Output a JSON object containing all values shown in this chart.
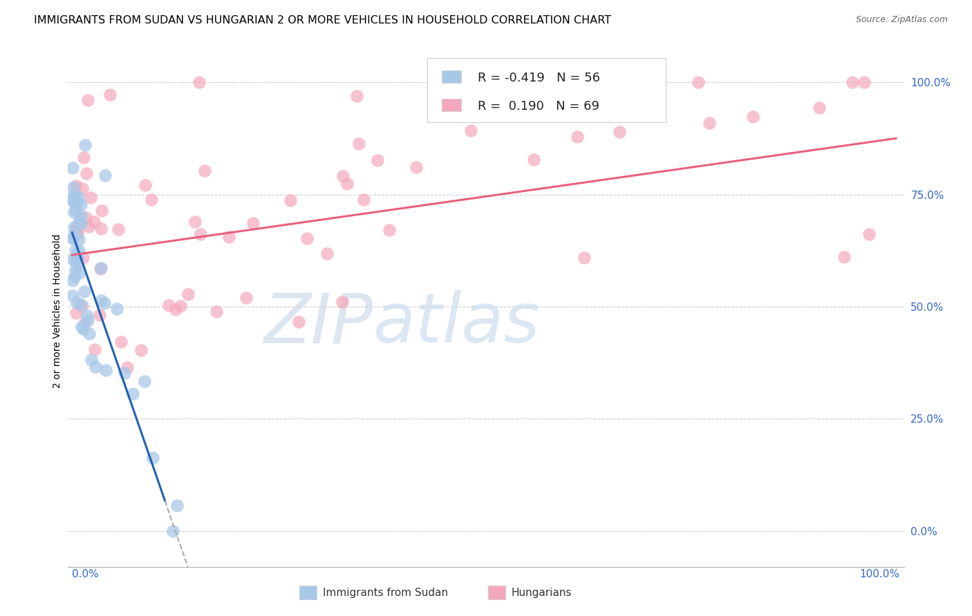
{
  "title": "IMMIGRANTS FROM SUDAN VS HUNGARIAN 2 OR MORE VEHICLES IN HOUSEHOLD CORRELATION CHART",
  "source": "Source: ZipAtlas.com",
  "ylabel": "2 or more Vehicles in Household",
  "legend_r_blue": "-0.419",
  "legend_n_blue": "56",
  "legend_r_pink": "0.190",
  "legend_n_pink": "69",
  "legend_label_blue": "Immigrants from Sudan",
  "legend_label_pink": "Hungarians",
  "color_blue": "#a8c8e8",
  "color_pink": "#f4a8bc",
  "color_blue_line": "#2060b0",
  "color_pink_line": "#e8607c",
  "color_blue_text": "#3366cc",
  "background_color": "#ffffff",
  "watermark_zip": "ZIP",
  "watermark_atlas": "atlas",
  "title_fontsize": 11.5,
  "axis_label_fontsize": 10,
  "tick_fontsize": 11,
  "legend_fontsize": 13
}
